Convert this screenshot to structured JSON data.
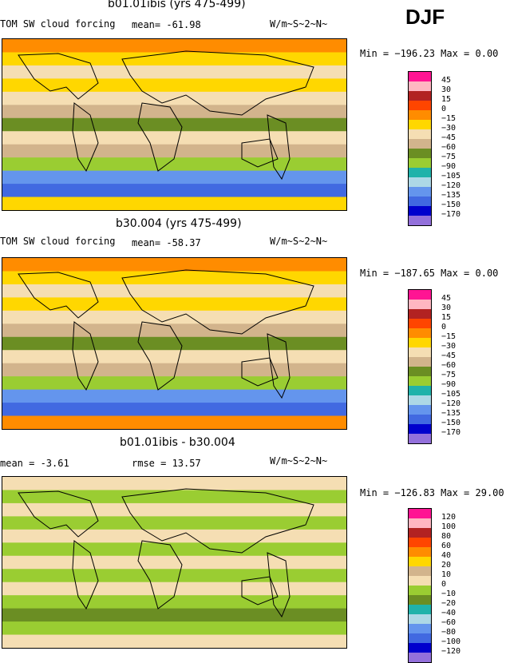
{
  "season": "DJF",
  "panels": [
    {
      "title": "b01.01ibis (yrs 475-499)",
      "variable": "TOM SW cloud forcing",
      "stat1": "mean= -61.98",
      "stat2": "",
      "units": "W/m~S~2~N~",
      "range": "Min = −196.23  Max =    0.00",
      "levels": [
        "45",
        "30",
        "15",
        "0",
        "−15",
        "−30",
        "−45",
        "−60",
        "−75",
        "−90",
        "−105",
        "−120",
        "−135",
        "−150",
        "−170"
      ],
      "colors": [
        "#ff1493",
        "#ffb6c1",
        "#b22222",
        "#ff4500",
        "#ff8c00",
        "#ffd700",
        "#f5deb3",
        "#d2b48c",
        "#6b8e23",
        "#9acd32",
        "#20b2aa",
        "#add8e6",
        "#6495ed",
        "#4169e1",
        "#0000cd",
        "#9370db"
      ]
    },
    {
      "title": "b30.004 (yrs 475-499)",
      "variable": "TOM SW cloud forcing",
      "stat1": "mean= -58.37",
      "stat2": "",
      "units": "W/m~S~2~N~",
      "range": "Min = −187.65  Max =    0.00",
      "levels": [
        "45",
        "30",
        "15",
        "0",
        "−15",
        "−30",
        "−45",
        "−60",
        "−75",
        "−90",
        "−105",
        "−120",
        "−135",
        "−150",
        "−170"
      ],
      "colors": [
        "#ff1493",
        "#ffb6c1",
        "#b22222",
        "#ff4500",
        "#ff8c00",
        "#ffd700",
        "#f5deb3",
        "#d2b48c",
        "#6b8e23",
        "#9acd32",
        "#20b2aa",
        "#add8e6",
        "#6495ed",
        "#4169e1",
        "#0000cd",
        "#9370db"
      ]
    },
    {
      "title": "b01.01ibis - b30.004",
      "variable": "mean =  -3.61",
      "stat1": "",
      "stat2": "rmse =  13.57",
      "units": "W/m~S~2~N~",
      "range": "Min = −126.83  Max =   29.00",
      "levels": [
        "120",
        "100",
        "80",
        "60",
        "40",
        "20",
        "10",
        "0",
        "−10",
        "−20",
        "−40",
        "−60",
        "−80",
        "−100",
        "−120"
      ],
      "colors": [
        "#ff1493",
        "#ffb6c1",
        "#b22222",
        "#ff4500",
        "#ff8c00",
        "#ffd700",
        "#d2b48c",
        "#f5deb3",
        "#9acd32",
        "#6b8e23",
        "#20b2aa",
        "#add8e6",
        "#6495ed",
        "#4169e1",
        "#0000cd",
        "#9370db"
      ]
    }
  ],
  "chart_data": [
    {
      "type": "heatmap",
      "title": "b01.01ibis (yrs 475-499)",
      "subtitle": "TOM SW cloud forcing",
      "mean": -61.98,
      "min": -196.23,
      "max": 0.0,
      "units": "W/m~S~2~N~",
      "contour_levels": [
        45,
        30,
        15,
        0,
        -15,
        -30,
        -45,
        -60,
        -75,
        -90,
        -105,
        -120,
        -135,
        -150,
        -170
      ],
      "lat_band_values_N_to_S": [
        -15,
        -30,
        -45,
        -30,
        -45,
        -60,
        -75,
        -45,
        -60,
        -90,
        -135,
        -150,
        -30
      ]
    },
    {
      "type": "heatmap",
      "title": "b30.004 (yrs 475-499)",
      "subtitle": "TOM SW cloud forcing",
      "mean": -58.37,
      "min": -187.65,
      "max": 0.0,
      "units": "W/m~S~2~N~",
      "contour_levels": [
        45,
        30,
        15,
        0,
        -15,
        -30,
        -45,
        -60,
        -75,
        -90,
        -105,
        -120,
        -135,
        -150,
        -170
      ],
      "lat_band_values_N_to_S": [
        -15,
        -30,
        -45,
        -30,
        -45,
        -60,
        -75,
        -45,
        -60,
        -90,
        -135,
        -150,
        -15
      ]
    },
    {
      "type": "heatmap",
      "title": "b01.01ibis - b30.004",
      "mean": -3.61,
      "rmse": 13.57,
      "min": -126.83,
      "max": 29.0,
      "units": "W/m~S~2~N~",
      "contour_levels": [
        120,
        100,
        80,
        60,
        40,
        20,
        10,
        0,
        -10,
        -20,
        -40,
        -60,
        -80,
        -100,
        -120
      ],
      "lat_band_values_N_to_S": [
        0,
        -10,
        0,
        -10,
        0,
        -10,
        0,
        -10,
        0,
        -10,
        -20,
        -10,
        0
      ]
    }
  ]
}
